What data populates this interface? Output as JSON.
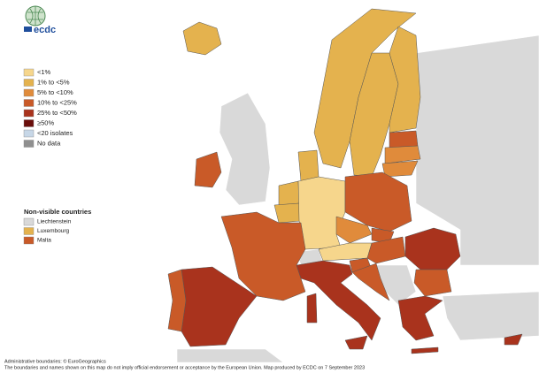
{
  "logo": "ecdc",
  "legend": {
    "items": [
      {
        "label": "<1%",
        "color": "#f6d68c"
      },
      {
        "label": "1% to <5%",
        "color": "#e4b24e"
      },
      {
        "label": "5% to <10%",
        "color": "#e08b3b"
      },
      {
        "label": "10% to <25%",
        "color": "#c95a28"
      },
      {
        "label": "25% to <50%",
        "color": "#a9331d"
      },
      {
        "label": "≥50%",
        "color": "#6a0e0a"
      },
      {
        "label": "<20 isolates",
        "color": "#c7d7e7"
      },
      {
        "label": "No data",
        "color": "#8f8f8f"
      }
    ]
  },
  "non_visible": {
    "title": "Non-visible countries",
    "items": [
      {
        "label": "Liechtenstein",
        "color": "#d9d9d9"
      },
      {
        "label": "Luxembourg",
        "color": "#e4b24e"
      },
      {
        "label": "Malta",
        "color": "#c95a28"
      }
    ]
  },
  "footer": [
    "Administrative boundaries: © EuroGeographics",
    "The boundaries and names shown on this map do not imply official endorsement or acceptance by the European Union. Map produced by ECDC on 7 September 2023"
  ]
}
